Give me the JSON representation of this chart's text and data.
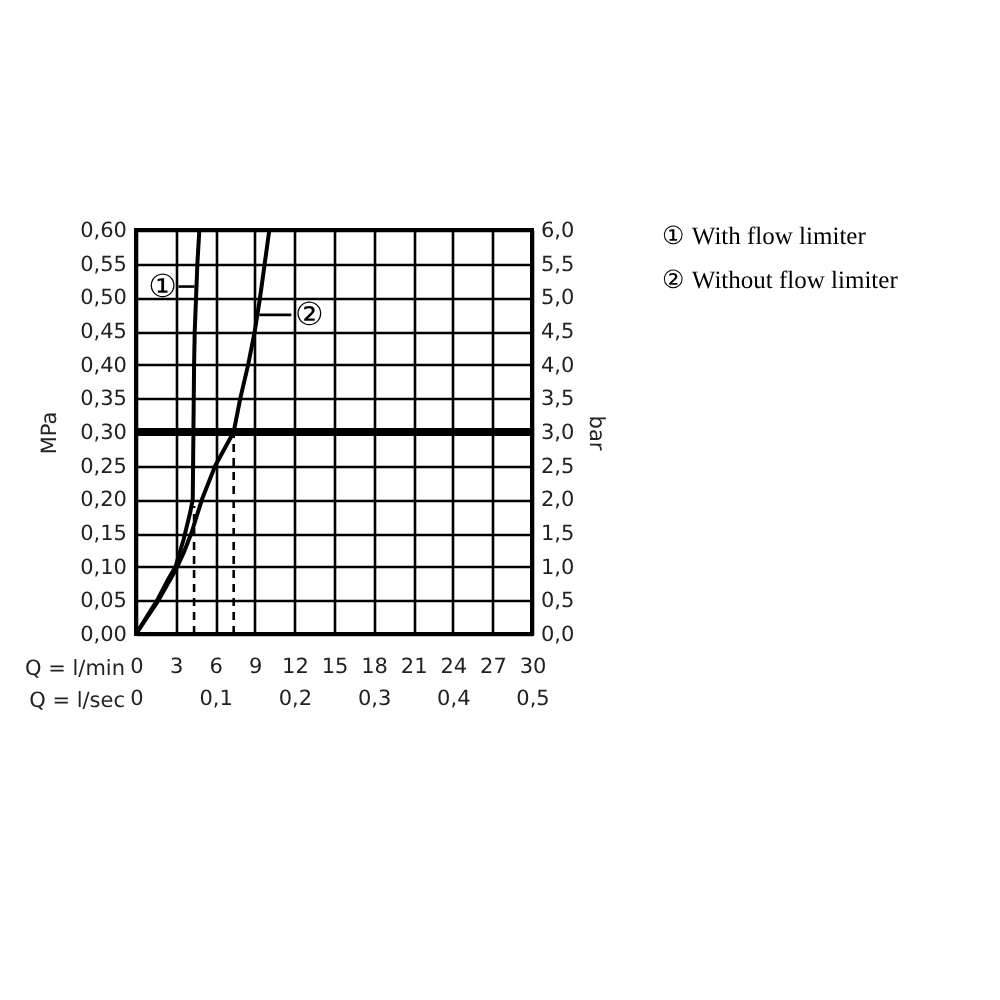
{
  "chart_data": {
    "type": "line",
    "xlabel": "Q = l/min",
    "x2label": "Q = l/sec",
    "ylabel": "MPa",
    "y2label": "bar",
    "xlim": [
      0,
      30
    ],
    "xticks": [
      0,
      3,
      6,
      9,
      12,
      15,
      18,
      21,
      24,
      27,
      30
    ],
    "x2lim": [
      0,
      0.5
    ],
    "x2ticks": [
      0,
      {
        "value": 0.1,
        "label": "0,1"
      },
      {
        "value": 0.2,
        "label": "0,2"
      },
      {
        "value": 0.3,
        "label": "0,3"
      },
      {
        "value": 0.4,
        "label": "0,4"
      },
      {
        "value": 0.5,
        "label": "0,5"
      }
    ],
    "ylim": [
      0,
      0.6
    ],
    "yticks": [
      {
        "value": 0,
        "label": "0,00"
      },
      {
        "value": 0.05,
        "label": "0,05"
      },
      {
        "value": 0.1,
        "label": "0,10"
      },
      {
        "value": 0.15,
        "label": "0,15"
      },
      {
        "value": 0.2,
        "label": "0,20"
      },
      {
        "value": 0.25,
        "label": "0,25"
      },
      {
        "value": 0.3,
        "label": "0,30"
      },
      {
        "value": 0.35,
        "label": "0,35"
      },
      {
        "value": 0.4,
        "label": "0,40"
      },
      {
        "value": 0.45,
        "label": "0,45"
      },
      {
        "value": 0.5,
        "label": "0,50"
      },
      {
        "value": 0.55,
        "label": "0,55"
      },
      {
        "value": 0.6,
        "label": "0,60"
      }
    ],
    "y2lim": [
      0,
      6
    ],
    "y2ticks": [
      {
        "value": 0,
        "label": "0,0"
      },
      {
        "value": 0.5,
        "label": "0,5"
      },
      {
        "value": 1,
        "label": "1,0"
      },
      {
        "value": 1.5,
        "label": "1,5"
      },
      {
        "value": 2,
        "label": "2,0"
      },
      {
        "value": 2.5,
        "label": "2,5"
      },
      {
        "value": 3,
        "label": "3,0"
      },
      {
        "value": 3.5,
        "label": "3,5"
      },
      {
        "value": 4,
        "label": "4,0"
      },
      {
        "value": 4.5,
        "label": "4,5"
      },
      {
        "value": 5,
        "label": "5,0"
      },
      {
        "value": 5.5,
        "label": "5,5"
      },
      {
        "value": 6,
        "label": "6,0"
      }
    ],
    "grid": true,
    "series": [
      {
        "name": "①",
        "color": "#000000",
        "x": [
          0,
          0.8,
          1.6,
          2.4,
          3.0,
          3.6,
          4.1,
          4.3,
          4.35,
          4.4,
          4.45,
          4.55,
          4.65,
          4.8
        ],
        "values": [
          0,
          0.025,
          0.05,
          0.08,
          0.1,
          0.14,
          0.18,
          0.2,
          0.3,
          0.4,
          0.45,
          0.5,
          0.55,
          0.6
        ]
      },
      {
        "name": "②",
        "color": "#000000",
        "x": [
          0,
          1.7,
          3.0,
          3.6,
          4.2,
          5.0,
          6.0,
          7.4,
          7.9,
          8.5,
          9.0,
          9.4,
          9.75,
          10.1
        ],
        "values": [
          0,
          0.05,
          0.095,
          0.12,
          0.15,
          0.2,
          0.25,
          0.3,
          0.35,
          0.4,
          0.45,
          0.5,
          0.55,
          0.6
        ]
      },
      {
        "color": "#000000",
        "line_style": "dashed",
        "x": [
          4.4,
          4.4
        ],
        "values": [
          0,
          0.19
        ]
      },
      {
        "color": "#000000",
        "line_style": "dashed",
        "x": [
          7.4,
          7.4
        ],
        "values": [
          0,
          0.3
        ]
      }
    ],
    "ref_lines": [
      {
        "axis": "y",
        "value": 0.3,
        "color": "#000000"
      }
    ],
    "annotations": [
      "① With flow limiter",
      "② Without flow limiter"
    ]
  }
}
